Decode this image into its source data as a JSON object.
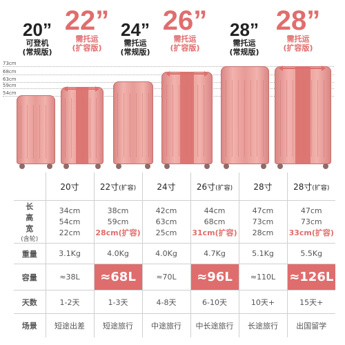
{
  "sizes": [
    {
      "num": "20”",
      "sub1": "可登机",
      "sub2": "(常规版)"
    },
    {
      "num": "22”",
      "sub1": "需托运",
      "sub2": "(扩容版)"
    },
    {
      "num": "24”",
      "sub1": "需托运",
      "sub2": "(常规版)"
    },
    {
      "num": "26”",
      "sub1": "需托运",
      "sub2": "(扩容版)"
    },
    {
      "num": "28”",
      "sub1": "需托运",
      "sub2": "(常规版)"
    },
    {
      "num": "28”",
      "sub1": "需托运",
      "sub2": "(扩容版)"
    }
  ],
  "ruler": {
    "l73": "73cm",
    "l68": "68cm",
    "l63": "63cm",
    "l59": "59cm",
    "l54": "54cm"
  },
  "table": {
    "headers": [
      "20寸",
      "22寸",
      "24寸",
      "26寸",
      "28寸",
      "28寸"
    ],
    "header_tag": "(扩容)",
    "dim_label_main": "长\n高宽",
    "dim_label_1": "长",
    "dim_label_2": "高",
    "dim_label_3": "宽",
    "dim_label_note": "(含轮)",
    "dims": [
      {
        "l": "34cm",
        "h": "54cm",
        "w": "22cm"
      },
      {
        "l": "38cm",
        "h": "59cm",
        "w": "28cm(扩容)"
      },
      {
        "l": "42cm",
        "h": "63cm",
        "w": "25cm"
      },
      {
        "l": "44cm",
        "h": "68cm",
        "w": "31cm(扩容)"
      },
      {
        "l": "47cm",
        "h": "73cm",
        "w": "28cm"
      },
      {
        "l": "47cm",
        "h": "73cm",
        "w": "33cm(扩容)"
      }
    ],
    "weight_label": "重量",
    "weights": [
      "3.1Kg",
      "4.0Kg",
      "4.0Kg",
      "4.7Kg",
      "5.1Kg",
      "5.5Kg"
    ],
    "capacity_label": "容量",
    "capacities": [
      "≈38L",
      "≈68L",
      "≈70L",
      "≈96L",
      "≈110L",
      "≈126L"
    ],
    "days_label": "天数",
    "days": [
      "1-2天",
      "1-3天",
      "4-8天",
      "6-10天",
      "10天+",
      "15天+"
    ],
    "scene_label": "场景",
    "scenes": [
      "短途出差",
      "短途旅行",
      "中途旅行",
      "中长途旅行",
      "长途旅行",
      "出国留学"
    ]
  },
  "colors": {
    "accent": "#e06d6d",
    "body": "#e9a29d"
  }
}
